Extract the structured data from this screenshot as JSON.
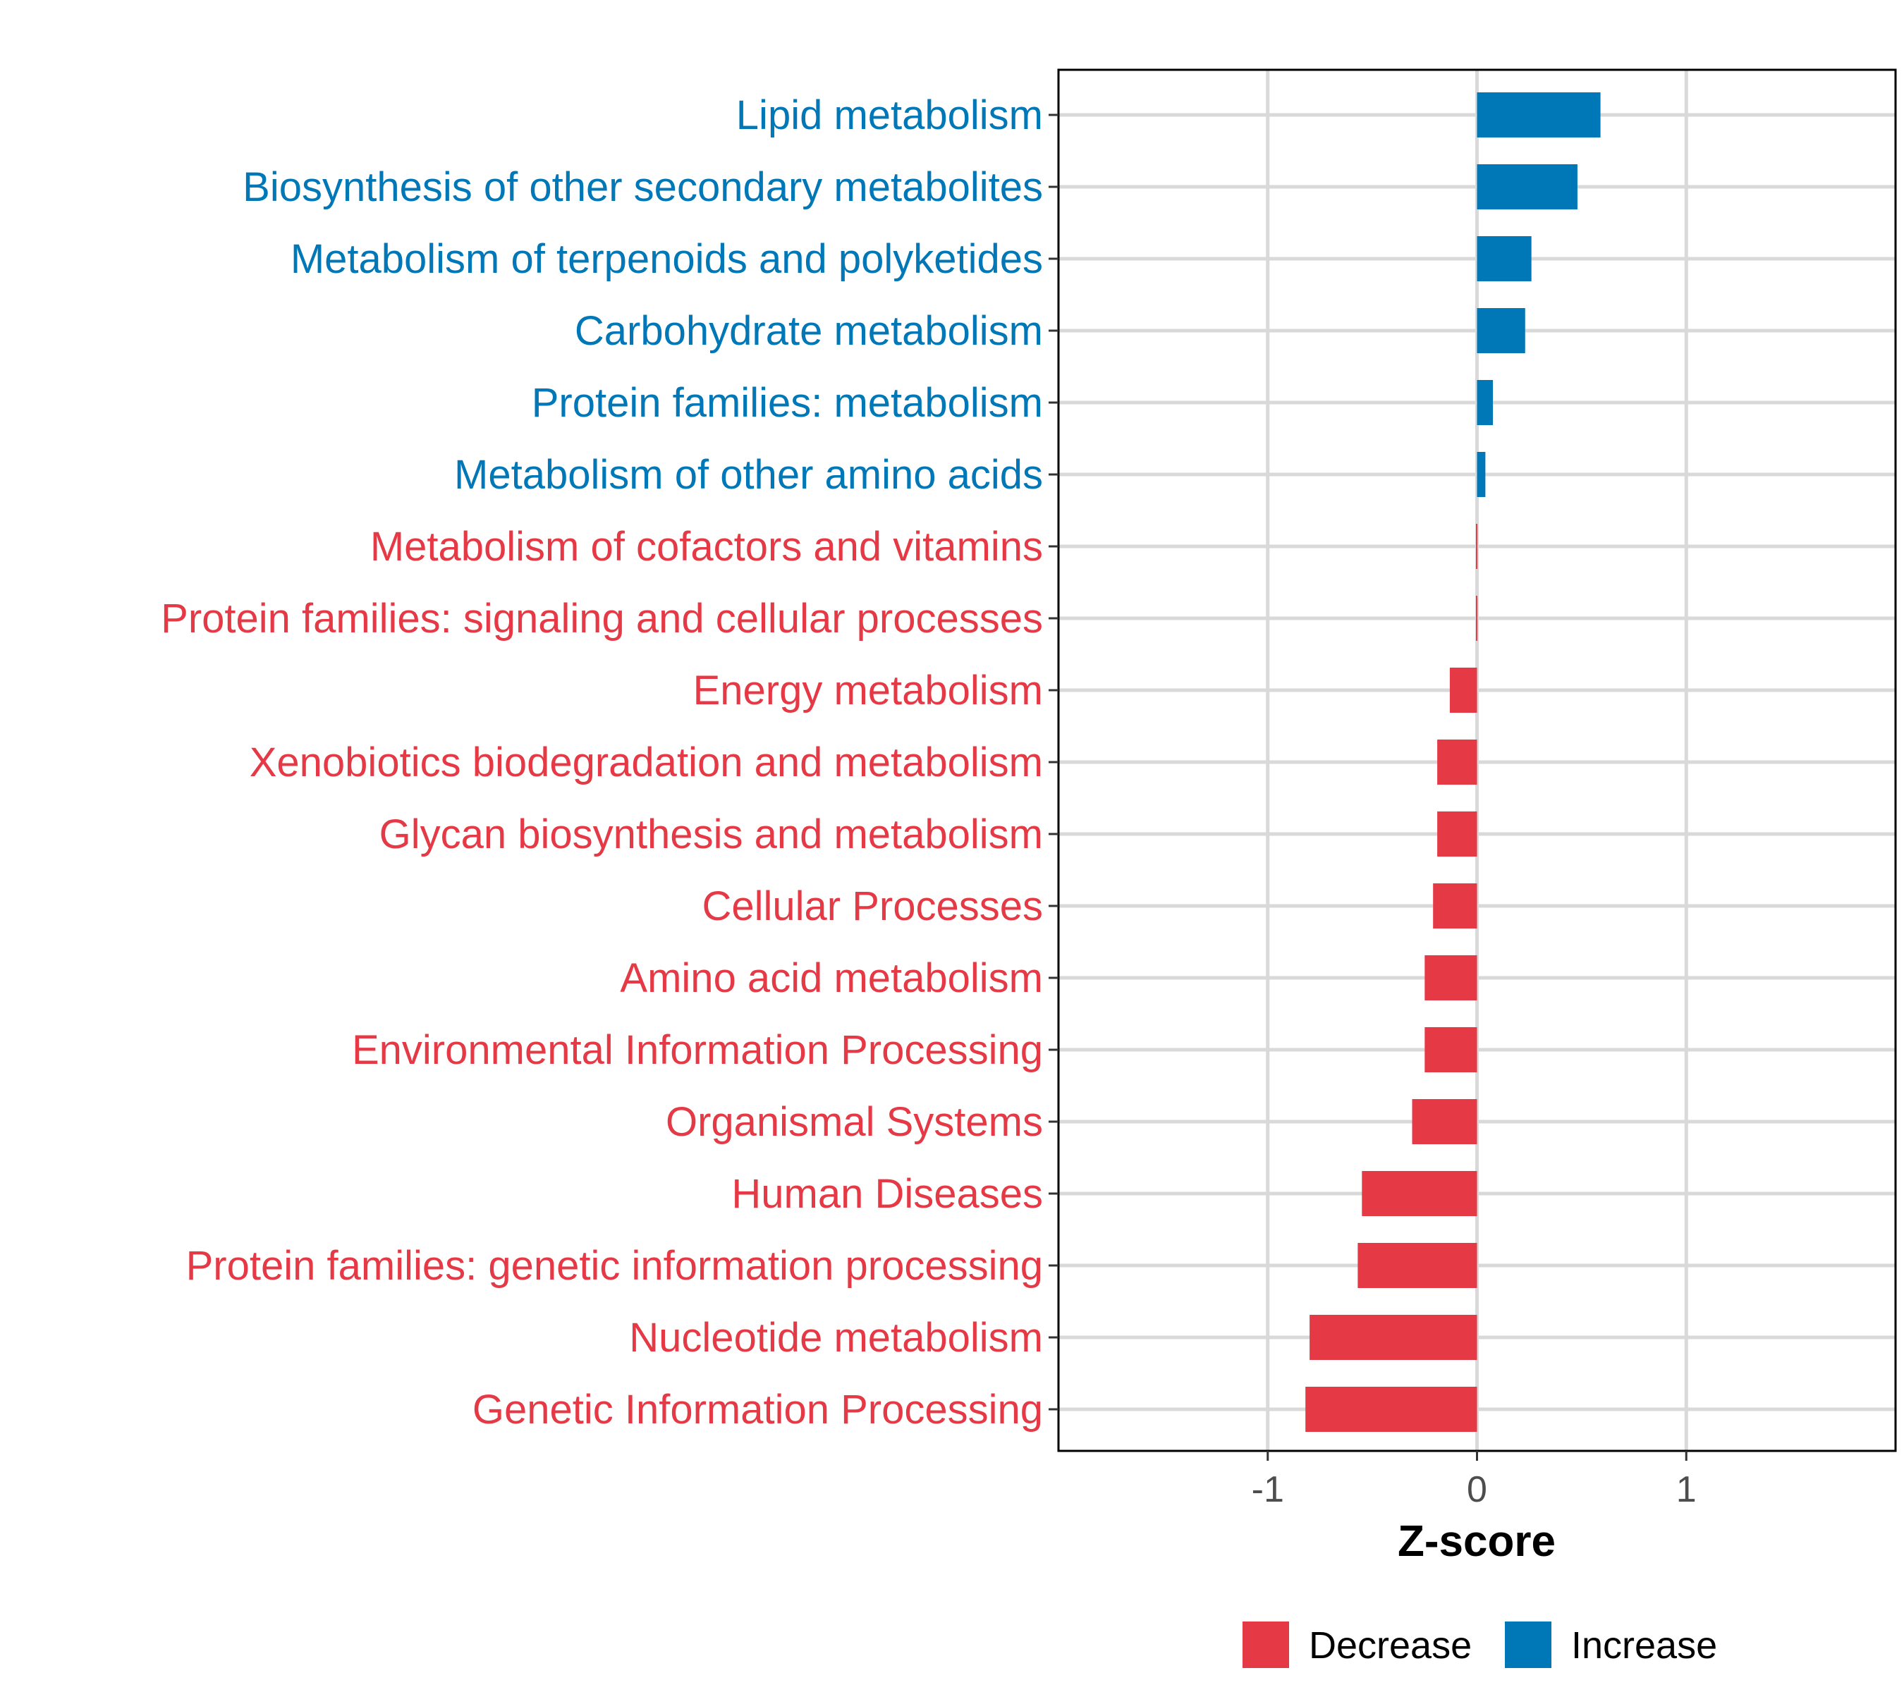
{
  "chart_data": {
    "type": "bar",
    "orientation": "horizontal",
    "title": "",
    "xlabel": "Z-score",
    "ylabel": "",
    "xlim": [
      -2,
      2
    ],
    "xticks": [
      -1,
      0,
      1
    ],
    "xtick_labels": [
      "-1",
      "0",
      "1"
    ],
    "grid": true,
    "categories": [
      "Lipid metabolism",
      "Biosynthesis of other secondary metabolites",
      "Metabolism of terpenoids and polyketides",
      "Carbohydrate metabolism",
      "Protein families: metabolism",
      "Metabolism of other amino acids",
      "Metabolism of cofactors and vitamins",
      "Protein families: signaling and cellular processes",
      "Energy metabolism",
      "Xenobiotics biodegradation and metabolism",
      "Glycan biosynthesis and metabolism",
      "Cellular Processes",
      "Amino acid metabolism",
      "Environmental Information Processing",
      "Organismal Systems",
      "Human Diseases",
      "Protein families: genetic information processing",
      "Nucleotide metabolism",
      "Genetic Information Processing"
    ],
    "values": [
      0.59,
      0.48,
      0.26,
      0.23,
      0.076,
      0.04,
      -0.005,
      -0.005,
      -0.13,
      -0.19,
      -0.19,
      -0.21,
      -0.25,
      -0.25,
      -0.31,
      -0.55,
      -0.57,
      -0.8,
      -0.82
    ],
    "legend": {
      "placement": "bottom",
      "entries": [
        {
          "label": "Decrease",
          "color": "#E63946"
        },
        {
          "label": "Increase",
          "color": "#0077B6"
        }
      ]
    },
    "colors": {
      "decrease": "#E63946",
      "increase": "#0077B6",
      "grid": "#D9D9D9"
    }
  }
}
